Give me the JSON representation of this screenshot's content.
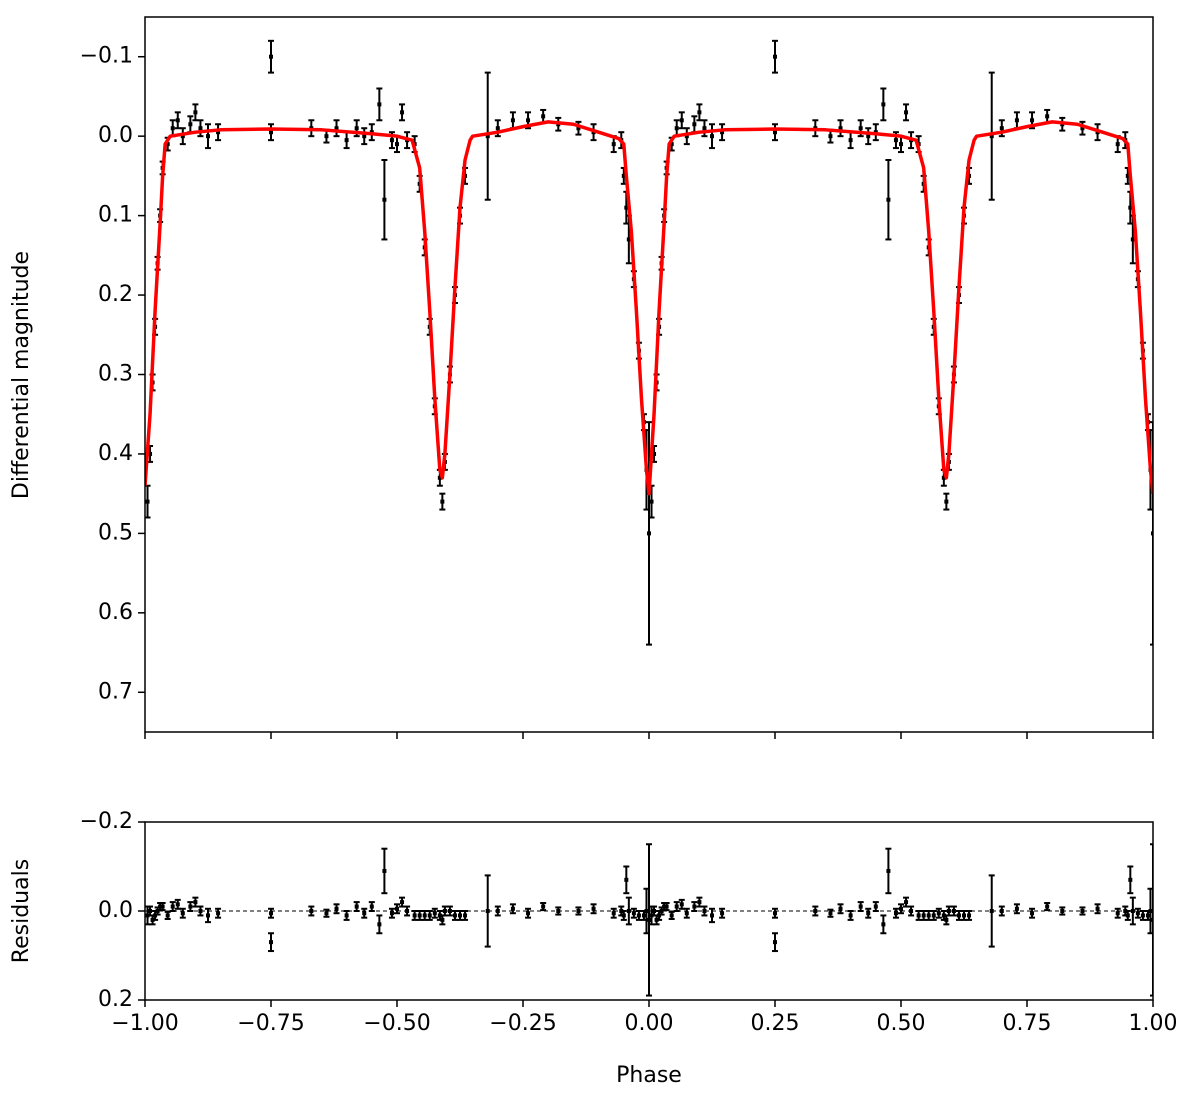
{
  "chart_data": [
    {
      "type": "errorbar",
      "ylabel": "Differential magnitude",
      "xlim": [
        -1,
        1
      ],
      "ylim": [
        0.75,
        -0.15
      ],
      "yticks": [
        {
          "value": -0.1,
          "label": "−0.1"
        },
        {
          "value": 0,
          "label": "0.0"
        },
        0.1,
        0.2,
        0.3,
        0.4,
        0.5,
        0.6,
        0.7
      ],
      "series": [
        {
          "type": "errorbar",
          "color": "#000000",
          "x": [
            -0.995,
            -0.99,
            -0.985,
            -0.98,
            -0.975,
            -0.97,
            -0.965,
            -0.955,
            -0.945,
            -0.935,
            -0.925,
            -0.91,
            -0.9,
            -0.89,
            -0.875,
            -0.855,
            -0.75,
            -0.75,
            -0.67,
            -0.64,
            -0.62,
            -0.6,
            -0.58,
            -0.565,
            -0.55,
            -0.535,
            -0.525,
            -0.51,
            -0.5,
            -0.49,
            -0.48,
            -0.465,
            -0.455,
            -0.445,
            -0.435,
            -0.425,
            -0.415,
            -0.41,
            -0.405,
            -0.395,
            -0.385,
            -0.375,
            -0.365,
            -0.32,
            -0.3,
            -0.27,
            -0.24,
            -0.21,
            -0.18,
            -0.14,
            -0.11,
            -0.07,
            -0.055,
            -0.05,
            -0.045,
            -0.04,
            -0.03,
            -0.02,
            -0.01,
            -0.005,
            0.0,
            0.005,
            0.01,
            0.015,
            0.02,
            0.025,
            0.03,
            0.035,
            0.045,
            0.055,
            0.065,
            0.075,
            0.09,
            0.1,
            0.11,
            0.125,
            0.145,
            0.25,
            0.25,
            0.33,
            0.36,
            0.38,
            0.4,
            0.42,
            0.435,
            0.45,
            0.465,
            0.475,
            0.49,
            0.5,
            0.51,
            0.52,
            0.535,
            0.545,
            0.555,
            0.565,
            0.575,
            0.585,
            0.59,
            0.595,
            0.605,
            0.615,
            0.625,
            0.635,
            0.68,
            0.7,
            0.73,
            0.76,
            0.79,
            0.82,
            0.86,
            0.89,
            0.93,
            0.945,
            0.95,
            0.955,
            0.96,
            0.97,
            0.98,
            0.99,
            0.995,
            1.0
          ],
          "values": [
            0.46,
            0.4,
            0.31,
            0.24,
            0.16,
            0.1,
            0.04,
            0.01,
            -0.01,
            -0.02,
            0.0,
            -0.015,
            -0.03,
            -0.01,
            0.0,
            -0.005,
            -0.1,
            -0.005,
            -0.01,
            0.0,
            -0.01,
            0.005,
            -0.01,
            0.0,
            -0.005,
            -0.04,
            0.08,
            0.005,
            0.01,
            -0.03,
            0.005,
            0.01,
            0.06,
            0.14,
            0.24,
            0.34,
            0.43,
            0.46,
            0.41,
            0.3,
            0.2,
            0.1,
            0.05,
            0.0,
            -0.01,
            -0.02,
            -0.02,
            -0.025,
            -0.015,
            -0.01,
            -0.005,
            0.01,
            0.005,
            0.05,
            0.09,
            0.13,
            0.18,
            0.27,
            0.36,
            0.42,
            0.5,
            0.46,
            0.4,
            0.31,
            0.24,
            0.16,
            0.1,
            0.04,
            0.01,
            -0.01,
            -0.02,
            0.0,
            -0.015,
            -0.03,
            -0.01,
            0.0,
            -0.005,
            -0.1,
            -0.005,
            -0.01,
            0.0,
            -0.01,
            0.005,
            -0.01,
            0.0,
            -0.005,
            -0.04,
            0.08,
            0.005,
            0.01,
            -0.03,
            0.005,
            0.01,
            0.06,
            0.14,
            0.24,
            0.34,
            0.43,
            0.46,
            0.41,
            0.3,
            0.2,
            0.1,
            0.05,
            0.0,
            -0.01,
            -0.02,
            -0.02,
            -0.025,
            -0.015,
            -0.01,
            -0.005,
            0.01,
            0.005,
            0.05,
            0.09,
            0.13,
            0.18,
            0.27,
            0.36,
            0.42,
            0.5
          ],
          "errors": [
            0.02,
            0.01,
            0.01,
            0.01,
            0.008,
            0.008,
            0.008,
            0.008,
            0.01,
            0.01,
            0.01,
            0.01,
            0.01,
            0.01,
            0.015,
            0.01,
            0.02,
            0.01,
            0.01,
            0.008,
            0.01,
            0.01,
            0.01,
            0.01,
            0.01,
            0.02,
            0.05,
            0.01,
            0.01,
            0.01,
            0.01,
            0.01,
            0.01,
            0.01,
            0.01,
            0.01,
            0.01,
            0.01,
            0.01,
            0.01,
            0.01,
            0.01,
            0.01,
            0.08,
            0.01,
            0.01,
            0.01,
            0.008,
            0.008,
            0.008,
            0.01,
            0.01,
            0.01,
            0.01,
            0.02,
            0.03,
            0.01,
            0.01,
            0.01,
            0.05,
            0.14,
            0.02,
            0.01,
            0.01,
            0.01,
            0.008,
            0.008,
            0.008,
            0.008,
            0.01,
            0.01,
            0.01,
            0.01,
            0.01,
            0.01,
            0.015,
            0.01,
            0.02,
            0.01,
            0.01,
            0.008,
            0.01,
            0.01,
            0.01,
            0.01,
            0.01,
            0.02,
            0.05,
            0.01,
            0.01,
            0.01,
            0.01,
            0.01,
            0.01,
            0.01,
            0.01,
            0.01,
            0.01,
            0.01,
            0.01,
            0.01,
            0.01,
            0.01,
            0.01,
            0.08,
            0.01,
            0.01,
            0.01,
            0.008,
            0.008,
            0.008,
            0.01,
            0.01,
            0.01,
            0.01,
            0.02,
            0.03,
            0.01,
            0.01,
            0.01,
            0.05,
            0.14
          ]
        },
        {
          "type": "line",
          "color": "#ff0000",
          "x": [
            -1,
            -0.99,
            -0.98,
            -0.97,
            -0.965,
            -0.96,
            -0.95,
            -0.9,
            -0.85,
            -0.75,
            -0.65,
            -0.55,
            -0.5,
            -0.47,
            -0.455,
            -0.445,
            -0.435,
            -0.425,
            -0.415,
            -0.41,
            -0.405,
            -0.395,
            -0.385,
            -0.375,
            -0.365,
            -0.355,
            -0.35,
            -0.3,
            -0.25,
            -0.2,
            -0.15,
            -0.1,
            -0.06,
            -0.05,
            -0.045,
            -0.035,
            -0.025,
            -0.015,
            -0.005,
            0,
            0.01,
            0.02,
            0.03,
            0.035,
            0.04,
            0.05,
            0.1,
            0.15,
            0.25,
            0.35,
            0.45,
            0.5,
            0.53,
            0.545,
            0.555,
            0.565,
            0.575,
            0.585,
            0.59,
            0.595,
            0.605,
            0.615,
            0.625,
            0.635,
            0.645,
            0.65,
            0.7,
            0.75,
            0.8,
            0.85,
            0.9,
            0.94,
            0.95,
            0.955,
            0.965,
            0.975,
            0.985,
            0.995,
            1
          ],
          "values": [
            0.44,
            0.35,
            0.22,
            0.11,
            0.05,
            0.01,
            0.0,
            -0.005,
            -0.008,
            -0.009,
            -0.008,
            -0.003,
            0.0,
            0.005,
            0.04,
            0.12,
            0.22,
            0.33,
            0.42,
            0.43,
            0.4,
            0.3,
            0.19,
            0.09,
            0.03,
            0.005,
            0.0,
            -0.005,
            -0.012,
            -0.018,
            -0.015,
            -0.005,
            0.003,
            0.01,
            0.05,
            0.12,
            0.22,
            0.33,
            0.42,
            0.45,
            0.35,
            0.22,
            0.11,
            0.05,
            0.01,
            0.0,
            -0.005,
            -0.008,
            -0.009,
            -0.008,
            -0.003,
            0.0,
            0.005,
            0.04,
            0.12,
            0.22,
            0.33,
            0.42,
            0.43,
            0.4,
            0.3,
            0.19,
            0.09,
            0.03,
            0.005,
            0.0,
            -0.005,
            -0.012,
            -0.018,
            -0.015,
            -0.005,
            0.003,
            0.01,
            0.05,
            0.12,
            0.22,
            0.33,
            0.42,
            0.45
          ]
        }
      ]
    },
    {
      "type": "errorbar",
      "xlabel": "Phase",
      "ylabel": "Residuals",
      "xlim": [
        -1,
        1
      ],
      "xticks": [
        {
          "value": -1,
          "label": "−1.00"
        },
        {
          "value": -0.75,
          "label": "−0.75"
        },
        {
          "value": -0.5,
          "label": "−0.50"
        },
        {
          "value": -0.25,
          "label": "−0.25"
        },
        {
          "value": 0,
          "label": "0.00"
        },
        0.25,
        {
          "value": 0.5,
          "label": "0.50"
        },
        0.75,
        {
          "value": 1,
          "label": "1.00"
        }
      ],
      "ylim": [
        0.2,
        -0.2
      ],
      "yticks": [
        {
          "value": -0.2,
          "label": "−0.2"
        },
        {
          "value": 0,
          "label": "0.0"
        },
        0.2
      ],
      "zero_line": true,
      "series": [
        {
          "type": "errorbar",
          "color": "#000000",
          "x": [
            -0.995,
            -0.99,
            -0.985,
            -0.98,
            -0.975,
            -0.97,
            -0.965,
            -0.955,
            -0.945,
            -0.935,
            -0.925,
            -0.91,
            -0.9,
            -0.89,
            -0.875,
            -0.855,
            -0.75,
            -0.75,
            -0.67,
            -0.64,
            -0.62,
            -0.6,
            -0.58,
            -0.565,
            -0.55,
            -0.535,
            -0.525,
            -0.51,
            -0.5,
            -0.49,
            -0.48,
            -0.465,
            -0.455,
            -0.445,
            -0.435,
            -0.425,
            -0.415,
            -0.41,
            -0.405,
            -0.395,
            -0.385,
            -0.375,
            -0.365,
            -0.32,
            -0.3,
            -0.27,
            -0.24,
            -0.21,
            -0.18,
            -0.14,
            -0.11,
            -0.07,
            -0.055,
            -0.05,
            -0.045,
            -0.04,
            -0.03,
            -0.02,
            -0.01,
            -0.005,
            0.0,
            0.005,
            0.01,
            0.015,
            0.02,
            0.025,
            0.03,
            0.035,
            0.045,
            0.055,
            0.065,
            0.075,
            0.09,
            0.1,
            0.11,
            0.125,
            0.145,
            0.25,
            0.25,
            0.33,
            0.36,
            0.38,
            0.4,
            0.42,
            0.435,
            0.45,
            0.465,
            0.475,
            0.49,
            0.5,
            0.51,
            0.52,
            0.535,
            0.545,
            0.555,
            0.565,
            0.575,
            0.585,
            0.59,
            0.595,
            0.605,
            0.615,
            0.625,
            0.635,
            0.68,
            0.7,
            0.73,
            0.76,
            0.79,
            0.82,
            0.86,
            0.89,
            0.93,
            0.945,
            0.95,
            0.955,
            0.96,
            0.97,
            0.98,
            0.99,
            0.995,
            1.0
          ],
          "values": [
            0.01,
            0.0,
            0.02,
            0.01,
            0.0,
            -0.01,
            -0.01,
            0.01,
            -0.01,
            -0.015,
            0.005,
            -0.01,
            -0.02,
            0.0,
            0.01,
            0.005,
            0.07,
            0.005,
            0.0,
            0.005,
            -0.005,
            0.01,
            -0.01,
            0.005,
            -0.01,
            0.03,
            -0.09,
            0.005,
            -0.005,
            -0.02,
            0.0,
            0.01,
            0.01,
            0.01,
            0.01,
            0.005,
            0.01,
            0.02,
            0.0,
            0.0,
            0.01,
            0.01,
            0.01,
            0.0,
            0.0,
            -0.005,
            0.005,
            -0.01,
            0.0,
            0.0,
            -0.005,
            0.005,
            0.0,
            0.01,
            -0.07,
            0.0,
            0.005,
            0.01,
            0.01,
            0.0,
            0.02,
            0.01,
            0.0,
            0.02,
            0.01,
            0.0,
            -0.01,
            -0.01,
            0.01,
            -0.01,
            -0.015,
            0.005,
            -0.01,
            -0.02,
            0.0,
            0.01,
            0.005,
            0.07,
            0.005,
            0.0,
            0.005,
            -0.005,
            0.01,
            -0.01,
            0.005,
            -0.01,
            0.03,
            -0.09,
            0.005,
            -0.005,
            -0.02,
            0.0,
            0.01,
            0.01,
            0.01,
            0.01,
            0.005,
            0.01,
            0.02,
            0.0,
            0.0,
            0.01,
            0.01,
            0.01,
            0.0,
            0.0,
            -0.005,
            0.005,
            -0.01,
            0.0,
            0.0,
            -0.005,
            0.005,
            0.0,
            0.01,
            -0.07,
            0.0,
            0.005,
            0.01,
            0.01,
            0.0,
            0.02
          ],
          "errors": [
            0.02,
            0.01,
            0.01,
            0.01,
            0.008,
            0.008,
            0.008,
            0.008,
            0.01,
            0.01,
            0.01,
            0.01,
            0.01,
            0.01,
            0.015,
            0.01,
            0.02,
            0.01,
            0.01,
            0.008,
            0.01,
            0.01,
            0.01,
            0.01,
            0.01,
            0.02,
            0.05,
            0.01,
            0.01,
            0.01,
            0.01,
            0.01,
            0.01,
            0.01,
            0.01,
            0.01,
            0.01,
            0.01,
            0.01,
            0.01,
            0.01,
            0.01,
            0.01,
            0.08,
            0.01,
            0.01,
            0.01,
            0.008,
            0.008,
            0.008,
            0.01,
            0.01,
            0.01,
            0.01,
            0.03,
            0.03,
            0.01,
            0.01,
            0.01,
            0.05,
            0.17,
            0.02,
            0.01,
            0.01,
            0.01,
            0.008,
            0.008,
            0.008,
            0.008,
            0.01,
            0.01,
            0.01,
            0.01,
            0.01,
            0.01,
            0.015,
            0.01,
            0.02,
            0.01,
            0.01,
            0.008,
            0.01,
            0.01,
            0.01,
            0.01,
            0.01,
            0.02,
            0.05,
            0.01,
            0.01,
            0.01,
            0.01,
            0.01,
            0.01,
            0.01,
            0.01,
            0.01,
            0.01,
            0.01,
            0.01,
            0.01,
            0.01,
            0.01,
            0.01,
            0.08,
            0.01,
            0.01,
            0.01,
            0.008,
            0.008,
            0.008,
            0.01,
            0.01,
            0.01,
            0.01,
            0.03,
            0.03,
            0.01,
            0.01,
            0.01,
            0.05,
            0.17
          ]
        }
      ]
    }
  ]
}
